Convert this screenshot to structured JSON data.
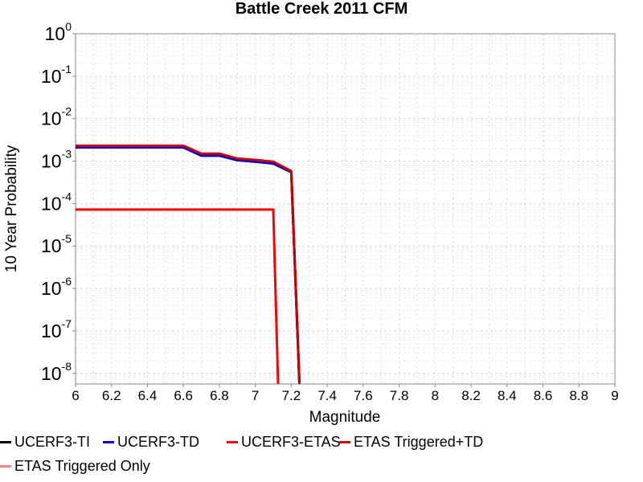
{
  "chart_data": {
    "type": "line",
    "title": "Battle Creek 2011 CFM",
    "xlabel": "Magnitude",
    "ylabel": "10 Year Probability",
    "xlim": [
      6,
      9
    ],
    "ylim_exp": [
      -8.25,
      0
    ],
    "y_scale": "log",
    "grid": true,
    "legend_position": "bottom",
    "x_ticks": [
      "6",
      "6.2",
      "6.4",
      "6.6",
      "6.8",
      "7",
      "7.2",
      "7.4",
      "7.6",
      "7.8",
      "8",
      "8.2",
      "8.4",
      "8.6",
      "8.8",
      "9"
    ],
    "y_ticks": [
      {
        "exp": 0,
        "base": "10",
        "sup": "0"
      },
      {
        "exp": -1,
        "base": "10",
        "sup": "-1"
      },
      {
        "exp": -2,
        "base": "10",
        "sup": "-2"
      },
      {
        "exp": -3,
        "base": "10",
        "sup": "-3"
      },
      {
        "exp": -4,
        "base": "10",
        "sup": "-4"
      },
      {
        "exp": -5,
        "base": "10",
        "sup": "-5"
      },
      {
        "exp": -6,
        "base": "10",
        "sup": "-6"
      },
      {
        "exp": -7,
        "base": "10",
        "sup": "-7"
      },
      {
        "exp": -8,
        "base": "10",
        "sup": "-8"
      }
    ],
    "series": [
      {
        "name": "UCERF3-TI",
        "color": "#000000",
        "x": [
          6.0,
          6.1,
          6.2,
          6.3,
          6.4,
          6.5,
          6.6,
          6.7,
          6.8,
          6.9,
          7.0,
          7.1,
          7.2,
          7.25
        ],
        "y": [
          0.0021,
          0.0021,
          0.0021,
          0.0021,
          0.0021,
          0.0021,
          0.0021,
          0.00135,
          0.00135,
          0.00105,
          0.00097,
          0.00088,
          0.00055,
          1e-09
        ]
      },
      {
        "name": "UCERF3-TD",
        "color": "#0000cc",
        "x": [
          6.0,
          6.1,
          6.2,
          6.3,
          6.4,
          6.5,
          6.6,
          6.7,
          6.8,
          6.9,
          7.0,
          7.1,
          7.2,
          7.25
        ],
        "y": [
          0.0021,
          0.0021,
          0.0021,
          0.0021,
          0.0021,
          0.0021,
          0.0021,
          0.00135,
          0.00135,
          0.00105,
          0.00097,
          0.00088,
          0.00055,
          1e-09
        ]
      },
      {
        "name": "UCERF3-ETAS",
        "color": "#ff0000",
        "x": [
          6.0,
          6.2,
          6.4,
          6.6,
          6.8,
          7.0,
          7.1,
          7.13
        ],
        "y": [
          7.2e-05,
          7.2e-05,
          7.2e-05,
          7.2e-05,
          7.2e-05,
          7.2e-05,
          7.2e-05,
          1e-09
        ]
      },
      {
        "name": "ETAS Triggered+TD",
        "color": "#cc0000",
        "x": [
          6.0,
          6.1,
          6.2,
          6.3,
          6.4,
          6.5,
          6.6,
          6.7,
          6.8,
          6.9,
          7.0,
          7.1,
          7.2,
          7.25
        ],
        "y": [
          0.0023,
          0.0023,
          0.0023,
          0.0023,
          0.0023,
          0.0023,
          0.0023,
          0.0015,
          0.0015,
          0.00115,
          0.00107,
          0.00097,
          0.00058,
          1e-09
        ]
      },
      {
        "name": "ETAS Triggered Only",
        "color": "#ff8080",
        "x": [],
        "y": []
      }
    ]
  }
}
